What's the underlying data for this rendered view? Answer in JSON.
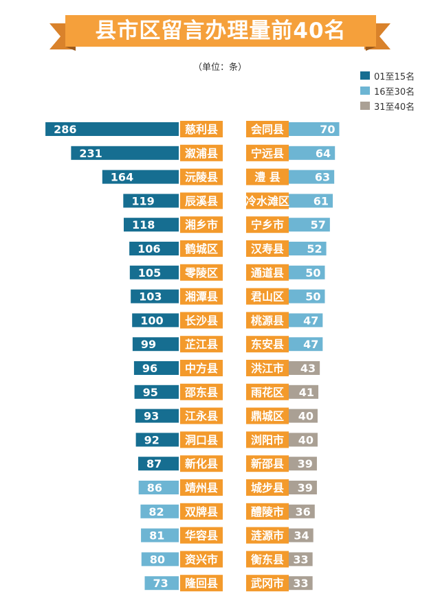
{
  "title": "县市区留言办理量前40名",
  "subtitle": "（单位：条）",
  "colors": {
    "banner": "#F5A03B",
    "banner_dark": "#D9822B",
    "name_box": "#F39A2C",
    "rank_01_15": "#166E91",
    "rank_16_30": "#6DB5D3",
    "rank_31_40": "#AAA094"
  },
  "legend": [
    {
      "label": "01至15名",
      "color_key": "rank_01_15"
    },
    {
      "label": "16至30名",
      "color_key": "rank_16_30"
    },
    {
      "label": "31至40名",
      "color_key": "rank_31_40"
    }
  ],
  "chart_data": {
    "type": "bar",
    "orientation": "horizontal",
    "unit": "条",
    "left_column": [
      {
        "rank": 1,
        "name": "慈利县",
        "value": 286
      },
      {
        "rank": 2,
        "name": "溆浦县",
        "value": 231
      },
      {
        "rank": 3,
        "name": "沅陵县",
        "value": 164
      },
      {
        "rank": 4,
        "name": "辰溪县",
        "value": 119
      },
      {
        "rank": 5,
        "name": "湘乡市",
        "value": 118
      },
      {
        "rank": 6,
        "name": "鹤城区",
        "value": 106
      },
      {
        "rank": 7,
        "name": "零陵区",
        "value": 105
      },
      {
        "rank": 8,
        "name": "湘潭县",
        "value": 103
      },
      {
        "rank": 9,
        "name": "长沙县",
        "value": 100
      },
      {
        "rank": 10,
        "name": "芷江县",
        "value": 99
      },
      {
        "rank": 11,
        "name": "中方县",
        "value": 96
      },
      {
        "rank": 12,
        "name": "邵东县",
        "value": 95
      },
      {
        "rank": 13,
        "name": "江永县",
        "value": 93
      },
      {
        "rank": 14,
        "name": "洞口县",
        "value": 92
      },
      {
        "rank": 15,
        "name": "新化县",
        "value": 87
      },
      {
        "rank": 16,
        "name": "靖州县",
        "value": 86
      },
      {
        "rank": 17,
        "name": "双牌县",
        "value": 82
      },
      {
        "rank": 18,
        "name": "华容县",
        "value": 81
      },
      {
        "rank": 19,
        "name": "资兴市",
        "value": 80
      },
      {
        "rank": 20,
        "name": "隆回县",
        "value": 73
      }
    ],
    "right_column": [
      {
        "rank": 21,
        "name": "会同县",
        "value": 70
      },
      {
        "rank": 22,
        "name": "宁远县",
        "value": 64
      },
      {
        "rank": 23,
        "name": "澧  县",
        "value": 63
      },
      {
        "rank": 24,
        "name": "冷水滩区",
        "value": 61
      },
      {
        "rank": 25,
        "name": "宁乡市",
        "value": 57
      },
      {
        "rank": 26,
        "name": "汉寿县",
        "value": 52
      },
      {
        "rank": 27,
        "name": "通道县",
        "value": 50
      },
      {
        "rank": 28,
        "name": "君山区",
        "value": 50
      },
      {
        "rank": 29,
        "name": "桃源县",
        "value": 47
      },
      {
        "rank": 30,
        "name": "东安县",
        "value": 47
      },
      {
        "rank": 31,
        "name": "洪江市",
        "value": 43
      },
      {
        "rank": 32,
        "name": "雨花区",
        "value": 41
      },
      {
        "rank": 33,
        "name": "鼎城区",
        "value": 40
      },
      {
        "rank": 34,
        "name": "浏阳市",
        "value": 40
      },
      {
        "rank": 35,
        "name": "新邵县",
        "value": 39
      },
      {
        "rank": 36,
        "name": "城步县",
        "value": 39
      },
      {
        "rank": 37,
        "name": "醴陵市",
        "value": 36
      },
      {
        "rank": 38,
        "name": "涟源市",
        "value": 34
      },
      {
        "rank": 39,
        "name": "衡东县",
        "value": 33
      },
      {
        "rank": 40,
        "name": "武冈市",
        "value": 33
      }
    ]
  }
}
